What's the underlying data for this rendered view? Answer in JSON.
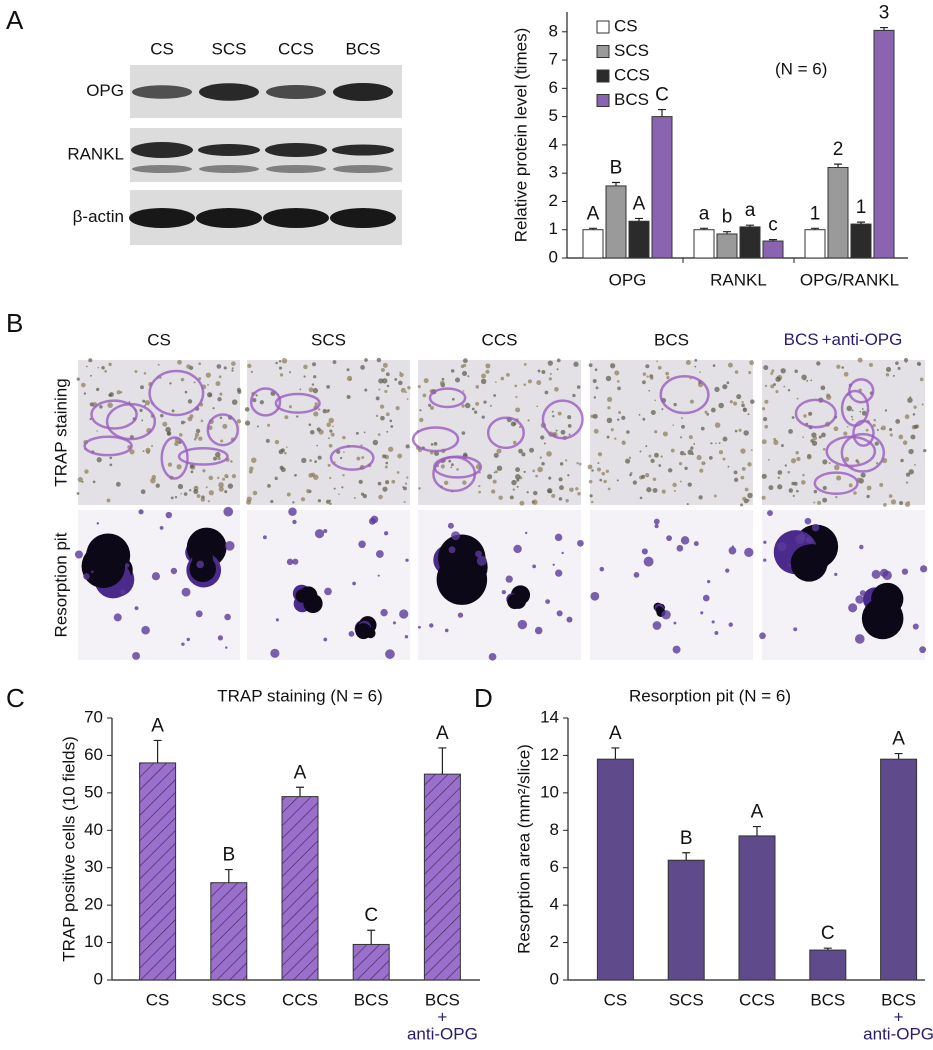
{
  "panel_labels": [
    "A",
    "B",
    "C",
    "D"
  ],
  "blot": {
    "lanes": [
      "CS",
      "SCS",
      "CCS",
      "BCS"
    ],
    "proteins": [
      "OPG",
      "RANKL",
      "β-actin"
    ]
  },
  "micrographs": {
    "columns": [
      "CS",
      "SCS",
      "CCS",
      "BCS"
    ],
    "last_column": [
      "BCS",
      "+anti-OPG"
    ],
    "rows": [
      "TRAP staining",
      "Resorption pit"
    ]
  },
  "chart_data": [
    {
      "type": "bar",
      "ylabel": "Relative protein level (times)",
      "annotation": "(N = 6)",
      "categories": [
        "OPG",
        "RANKL",
        "OPG/RANKL"
      ],
      "series": [
        {
          "name": "CS",
          "color": "#ffffff",
          "values": [
            1,
            1,
            1
          ],
          "errors": [
            0.05,
            0.05,
            0.05
          ],
          "labels": [
            "A",
            "a",
            "1"
          ]
        },
        {
          "name": "SCS",
          "color": "#9a9a9a",
          "values": [
            2.55,
            0.85,
            3.2
          ],
          "errors": [
            0.12,
            0.08,
            0.12
          ],
          "labels": [
            "B",
            "b",
            "2"
          ]
        },
        {
          "name": "CCS",
          "color": "#2b2b2b",
          "values": [
            1.3,
            1.1,
            1.2
          ],
          "errors": [
            0.1,
            0.06,
            0.07
          ],
          "labels": [
            "A",
            "a",
            "1"
          ]
        },
        {
          "name": "BCS",
          "color": "#8a64b0",
          "values": [
            5.0,
            0.6,
            8.05
          ],
          "errors": [
            0.25,
            0.05,
            0.1
          ],
          "labels": [
            "C",
            "c",
            "3"
          ]
        }
      ],
      "ylim": [
        0,
        8.7
      ],
      "yticks": [
        0,
        1,
        2,
        3,
        4,
        5,
        6,
        7,
        8
      ],
      "legend": "top-left"
    },
    {
      "type": "bar",
      "title": "TRAP staining (N = 6)",
      "ylabel": "TRAP positive cells (10 fields)",
      "categories": [
        "CS",
        "SCS",
        "CCS",
        "BCS",
        [
          "BCS",
          "+",
          "anti-OPG"
        ]
      ],
      "values": [
        58,
        26,
        49,
        9.5,
        55
      ],
      "errors": [
        6,
        3.5,
        2.5,
        3.8,
        7
      ],
      "labels": [
        "A",
        "B",
        "A",
        "C",
        "A"
      ],
      "color": "#9b6fcc",
      "hatch": true,
      "ylim": [
        0,
        70
      ],
      "yticks": [
        0,
        10,
        20,
        30,
        40,
        50,
        60,
        70
      ]
    },
    {
      "type": "bar",
      "title": "Resorption pit (N = 6)",
      "ylabel": "Resorption area (mm²/slice)",
      "categories": [
        "CS",
        "SCS",
        "CCS",
        "BCS",
        [
          "BCS",
          "+",
          "anti-OPG"
        ]
      ],
      "values": [
        11.8,
        6.4,
        7.7,
        1.6,
        11.8
      ],
      "errors": [
        0.6,
        0.4,
        0.5,
        0.1,
        0.3
      ],
      "labels": [
        "A",
        "B",
        "A",
        "C",
        "A"
      ],
      "color": "#5f4a8b",
      "hatch": false,
      "ylim": [
        0,
        14
      ],
      "yticks": [
        0,
        2,
        4,
        6,
        8,
        10,
        12,
        14
      ]
    }
  ]
}
